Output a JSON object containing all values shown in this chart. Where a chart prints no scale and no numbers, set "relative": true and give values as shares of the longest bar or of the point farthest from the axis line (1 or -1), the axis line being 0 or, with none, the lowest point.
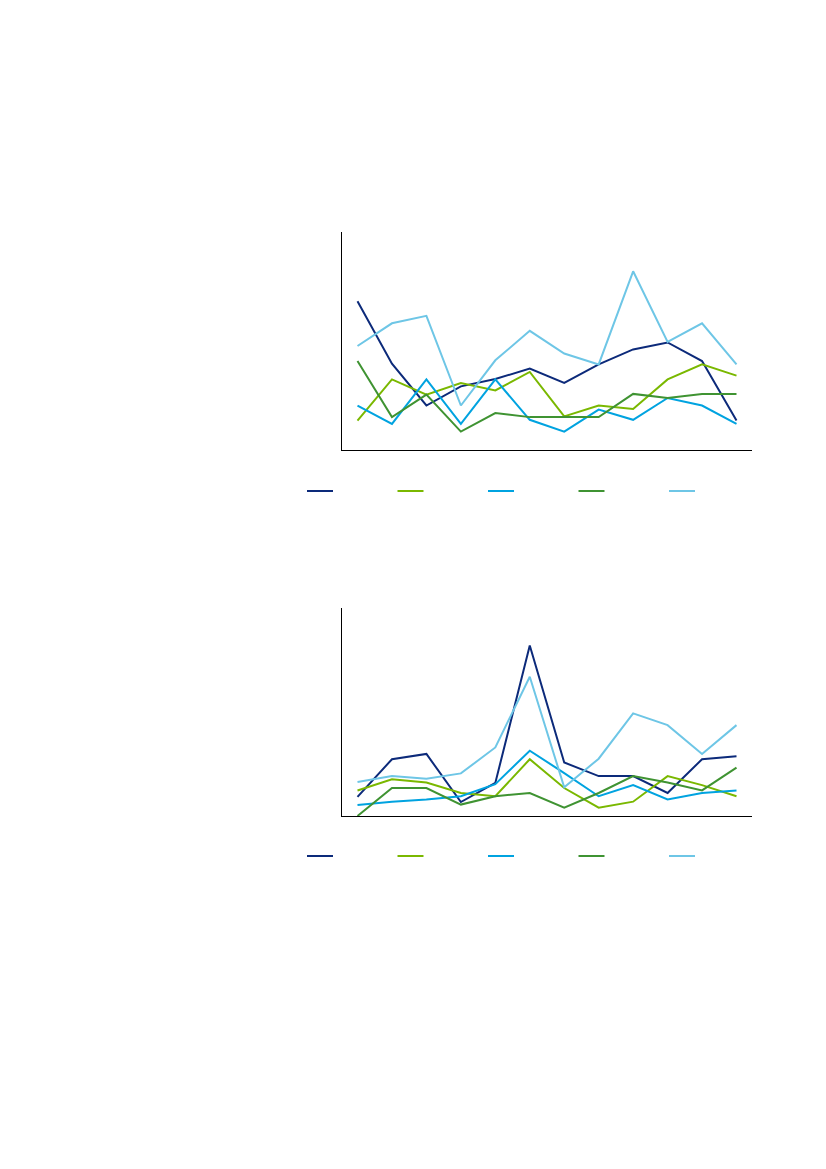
{
  "chart_data": [
    {
      "type": "line",
      "relative": true,
      "categories": [
        null,
        null,
        null,
        null,
        null,
        null,
        null,
        null,
        null,
        null,
        null,
        null
      ],
      "series": [
        {
          "color": "#0c2a7a",
          "values": [
            0.833,
            0.483,
            0.249,
            0.356,
            0.397,
            0.456,
            0.376,
            0.479,
            0.563,
            0.602,
            0.498,
            0.165
          ]
        },
        {
          "color": "#7ab800",
          "values": [
            0.165,
            0.395,
            0.31,
            0.375,
            0.333,
            0.437,
            0.188,
            0.249,
            0.23,
            0.395,
            0.479,
            0.416
          ]
        },
        {
          "color": "#00a3e0",
          "values": [
            0.249,
            0.146,
            0.395,
            0.146,
            0.395,
            0.169,
            0.103,
            0.226,
            0.169,
            0.291,
            0.249,
            0.146
          ]
        },
        {
          "color": "#3f9332",
          "values": [
            0.498,
            0.184,
            0.31,
            0.103,
            0.207,
            0.184,
            0.184,
            0.184,
            0.314,
            0.291,
            0.314,
            0.314
          ]
        },
        {
          "color": "#6ec6e6",
          "values": [
            0.582,
            0.709,
            0.751,
            0.249,
            0.502,
            0.667,
            0.54,
            0.479,
            1,
            0.605,
            0.709,
            0.479
          ]
        }
      ]
    },
    {
      "type": "line",
      "relative": true,
      "categories": [
        null,
        null,
        null,
        null,
        null,
        null,
        null,
        null,
        null,
        null,
        null,
        null
      ],
      "series": [
        {
          "color": "#0c2a7a",
          "values": [
            0.112,
            0.333,
            0.364,
            0.082,
            0.194,
            1,
            0.314,
            0.234,
            0.234,
            0.135,
            0.333,
            0.35
          ]
        },
        {
          "color": "#7ab800",
          "values": [
            0.15,
            0.215,
            0.196,
            0.135,
            0.116,
            0.333,
            0.164,
            0.049,
            0.084,
            0.234,
            0.181,
            0.116
          ]
        },
        {
          "color": "#00a3e0",
          "values": [
            0.065,
            0.084,
            0.097,
            0.116,
            0.187,
            0.383,
            0.252,
            0.116,
            0.181,
            0.097,
            0.135,
            0.15
          ]
        },
        {
          "color": "#3f9332",
          "values": [
            0,
            0.164,
            0.164,
            0.067,
            0.116,
            0.135,
            0.049,
            0.135,
            0.234,
            0.196,
            0.15,
            0.284
          ]
        },
        {
          "color": "#6ec6e6",
          "values": [
            0.2,
            0.234,
            0.219,
            0.25,
            0.402,
            0.817,
            0.168,
            0.336,
            0.602,
            0.533,
            0.364,
            0.533
          ]
        }
      ]
    }
  ]
}
